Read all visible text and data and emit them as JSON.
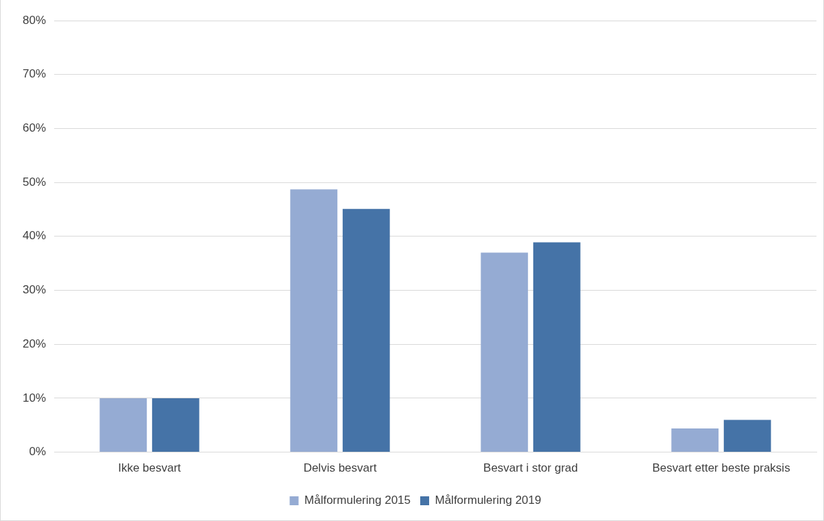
{
  "chart_data": {
    "type": "bar",
    "categories": [
      "Ikke besvart",
      "Delvis besvart",
      "Besvart i stor grad",
      "Besvart etter beste praksis"
    ],
    "series": [
      {
        "name": "Målformulering 2015",
        "color": "#95abd3",
        "values": [
          10,
          48.7,
          37,
          4.4
        ]
      },
      {
        "name": "Målformulering 2019",
        "color": "#4573a7",
        "values": [
          10,
          45.1,
          38.9,
          6
        ]
      }
    ],
    "ylim": [
      0,
      80
    ],
    "yticks": [
      {
        "value": 0,
        "label": "0%"
      },
      {
        "value": 10,
        "label": "10%"
      },
      {
        "value": 20,
        "label": "20%"
      },
      {
        "value": 30,
        "label": "30%"
      },
      {
        "value": 40,
        "label": "40%"
      },
      {
        "value": 50,
        "label": "50%"
      },
      {
        "value": 60,
        "label": "60%"
      },
      {
        "value": 70,
        "label": "70%"
      },
      {
        "value": 80,
        "label": "80%"
      }
    ],
    "grid": "y",
    "legend": "bottom"
  }
}
